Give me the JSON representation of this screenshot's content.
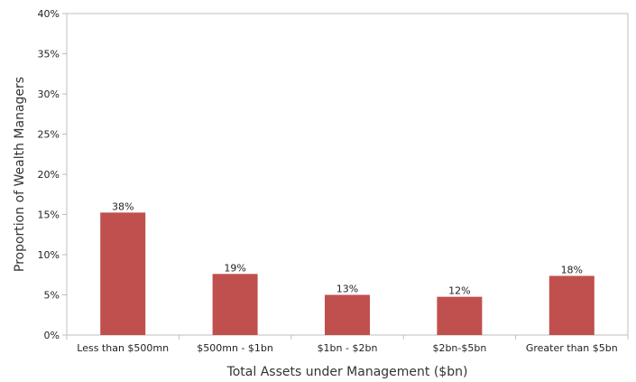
{
  "chart_data": {
    "type": "bar",
    "title": "",
    "xlabel": "Total Assets under Management ($bn)",
    "ylabel": "Proportion of Wealth Managers",
    "categories": [
      "Less than $500mn",
      "$500mn - $1bn",
      "$1bn - $2bn",
      "$2bn-$5bn",
      "Greater than $5bn"
    ],
    "values": [
      38,
      19,
      13,
      12,
      18
    ],
    "value_fractions": [
      0.381,
      0.19,
      0.125,
      0.119,
      0.184
    ],
    "data_labels": [
      "38%",
      "19%",
      "13%",
      "12%",
      "18%"
    ],
    "yticks": [
      "0%",
      "5%",
      "10%",
      "15%",
      "20%",
      "25%",
      "30%",
      "35%",
      "40%"
    ],
    "ylim": [
      0,
      40
    ],
    "grid": false,
    "legend": "none",
    "bar_color": "#c0504d",
    "axis_color": "#bfbfbf"
  }
}
